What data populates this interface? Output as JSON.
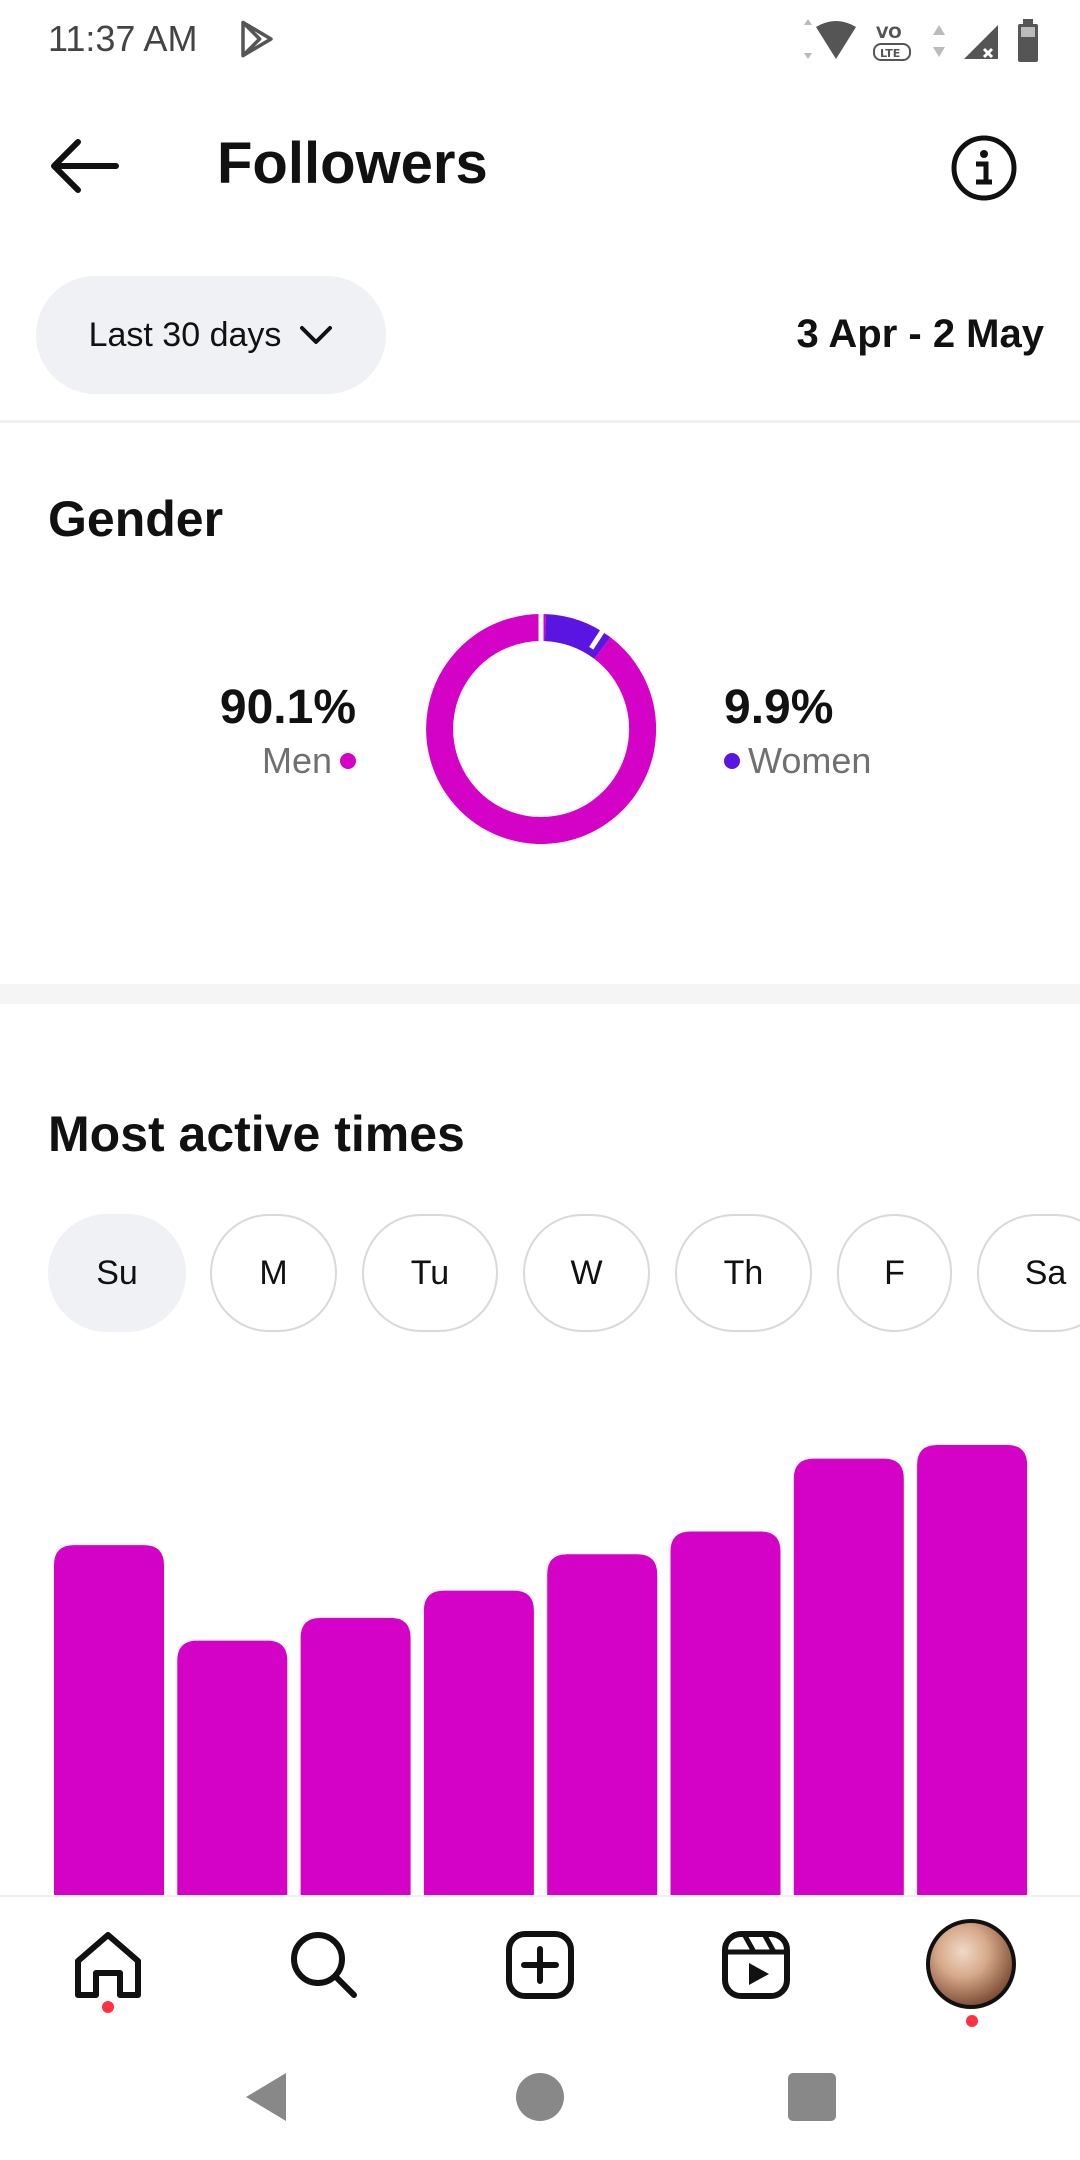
{
  "status_bar": {
    "time": "11:37 AM",
    "icons": [
      "play-store-icon",
      "wifi-icon",
      "volte-icon",
      "signal-icon",
      "battery-icon"
    ]
  },
  "header": {
    "title": "Followers",
    "back_icon": "arrow-left-icon",
    "info_icon": "info-icon"
  },
  "range": {
    "selector_label": "Last 30 days",
    "date_range": "3 Apr - 2 May"
  },
  "gender": {
    "title": "Gender",
    "men": {
      "value": "90.1%",
      "label": "Men",
      "color": "#d302c6"
    },
    "women": {
      "value": "9.9%",
      "label": "Women",
      "color": "#5a15e2"
    }
  },
  "active_times": {
    "title": "Most active times",
    "days": [
      {
        "label": "Su",
        "selected": true
      },
      {
        "label": "M",
        "selected": false
      },
      {
        "label": "Tu",
        "selected": false
      },
      {
        "label": "W",
        "selected": false
      },
      {
        "label": "Th",
        "selected": false
      },
      {
        "label": "F",
        "selected": false
      },
      {
        "label": "Sa",
        "selected": false
      }
    ]
  },
  "chart_data": {
    "type": "bar",
    "values": [
      0.78,
      0.57,
      0.62,
      0.68,
      0.76,
      0.81,
      0.97,
      1.0
    ],
    "color": "#d302c6"
  },
  "bottom_nav": {
    "items": [
      "home-icon",
      "search-icon",
      "create-icon",
      "reels-icon",
      "profile-avatar"
    ]
  },
  "system_nav": [
    "back",
    "home",
    "recents"
  ]
}
